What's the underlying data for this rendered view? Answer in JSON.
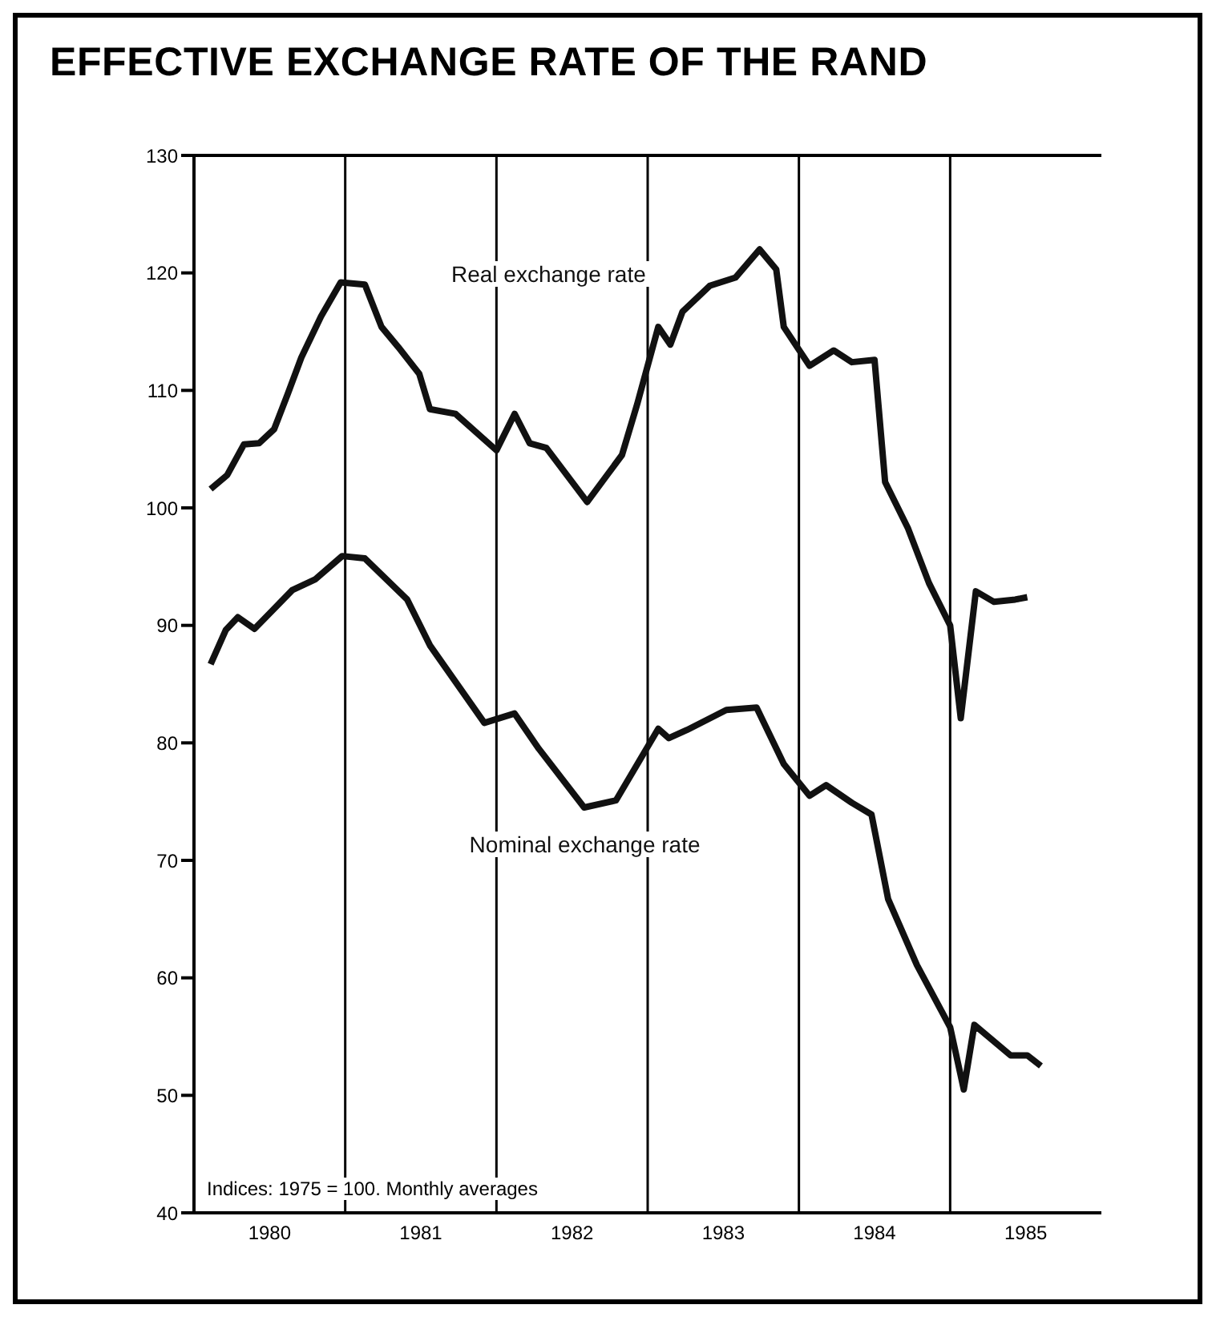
{
  "chart_data": {
    "type": "line",
    "title": "EFFECTIVE EXCHANGE RATE OF THE RAND",
    "annotations": [
      "Indices: 1975 = 100. Monthly averages"
    ],
    "xlim": [
      1980,
      1986
    ],
    "xticks": [
      {
        "value": 1980.5,
        "label": "1980"
      },
      {
        "value": 1981.5,
        "label": "1981"
      },
      {
        "value": 1982.5,
        "label": "1982"
      },
      {
        "value": 1983.5,
        "label": "1983"
      },
      {
        "value": 1984.5,
        "label": "1984"
      },
      {
        "value": 1985.5,
        "label": "1985"
      }
    ],
    "ylim": [
      40,
      130
    ],
    "yticks": [
      40,
      50,
      60,
      70,
      80,
      90,
      100,
      110,
      120,
      130
    ],
    "ref_lines": [
      {
        "axis": "x",
        "value": 1981,
        "color": "#000000"
      },
      {
        "axis": "x",
        "value": 1982,
        "color": "#000000"
      },
      {
        "axis": "x",
        "value": 1983,
        "color": "#000000"
      },
      {
        "axis": "x",
        "value": 1984,
        "color": "#000000"
      },
      {
        "axis": "x",
        "value": 1985,
        "color": "#000000"
      }
    ],
    "series": [
      {
        "name": "Real exchange rate",
        "color": "#111111",
        "x": [
          1980.11,
          1980.22,
          1980.33,
          1980.43,
          1980.53,
          1980.62,
          1980.71,
          1980.84,
          1980.97,
          1981.13,
          1981.24,
          1981.35,
          1981.49,
          1981.56,
          1981.73,
          1982.0,
          1982.12,
          1982.22,
          1982.33,
          1982.6,
          1982.83,
          1982.93,
          1983.07,
          1983.15,
          1983.23,
          1983.41,
          1983.58,
          1983.74,
          1983.85,
          1983.9,
          1984.07,
          1984.23,
          1984.35,
          1984.5,
          1984.57,
          1984.72,
          1984.86,
          1985.0,
          1985.07,
          1985.17,
          1985.29,
          1985.43,
          1985.51
        ],
        "values": [
          101.6,
          102.8,
          105.4,
          105.5,
          106.7,
          109.7,
          112.8,
          116.3,
          119.2,
          119,
          115.4,
          113.7,
          111.4,
          108.4,
          108,
          104.9,
          108,
          105.5,
          105.1,
          100.5,
          104.5,
          108.8,
          115.4,
          113.9,
          116.7,
          118.9,
          119.6,
          122,
          120.3,
          115.4,
          112.1,
          113.4,
          112.4,
          112.6,
          102.2,
          98.3,
          93.6,
          90,
          82.1,
          92.9,
          92,
          92.2,
          92.4
        ]
      },
      {
        "name": "Nominal exchange rate",
        "color": "#111111",
        "x": [
          1980.11,
          1980.21,
          1980.29,
          1980.4,
          1980.65,
          1980.8,
          1980.98,
          1981.13,
          1981.41,
          1981.56,
          1981.92,
          1982.12,
          1982.28,
          1982.58,
          1982.79,
          1983.07,
          1983.14,
          1983.26,
          1983.52,
          1983.72,
          1983.9,
          1984.07,
          1984.18,
          1984.35,
          1984.48,
          1984.59,
          1984.78,
          1985.0,
          1985.09,
          1985.16,
          1985.4,
          1985.51,
          1985.6
        ],
        "values": [
          86.7,
          89.6,
          90.7,
          89.7,
          93,
          93.9,
          95.9,
          95.7,
          92.2,
          88.3,
          81.7,
          82.5,
          79.5,
          74.5,
          75.1,
          81.2,
          80.4,
          81.1,
          82.8,
          83,
          78.2,
          75.5,
          76.4,
          74.9,
          73.9,
          66.7,
          61.1,
          55.8,
          50.5,
          56,
          53.4,
          53.4,
          52.5
        ]
      }
    ]
  }
}
